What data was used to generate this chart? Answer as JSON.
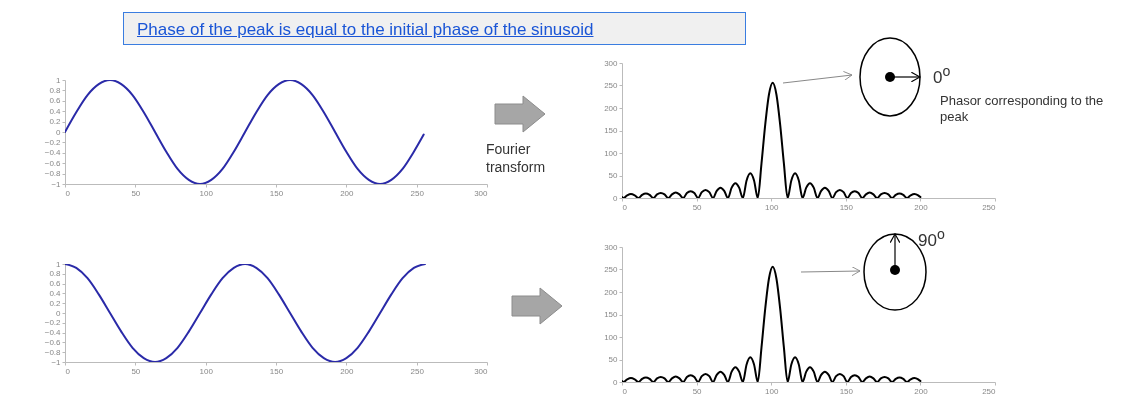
{
  "chart_data": [
    {
      "type": "line",
      "title": "Phase of the peak is equal to the initial phase of the sinusoid",
      "annotations": [
        "Fourier transform"
      ],
      "xlim": [
        0,
        300
      ],
      "xticks": [
        0,
        50,
        100,
        150,
        200,
        250,
        300
      ],
      "ylim": [
        -1,
        1
      ],
      "yticks": [
        -1,
        -0.8,
        -0.6,
        -0.4,
        -0.2,
        0,
        0.2,
        0.4,
        0.6,
        0.8,
        1
      ],
      "grid": false,
      "series": [
        {
          "color": "#2a2aa8",
          "x": [
            0,
            8,
            16,
            24,
            32,
            40,
            48,
            56,
            64,
            72,
            80,
            88,
            96,
            104,
            112,
            120,
            128,
            136,
            144,
            152,
            160,
            168,
            176,
            184,
            192,
            200,
            208,
            216,
            224,
            232,
            240,
            248,
            255
          ],
          "values": [
            0,
            0.38,
            0.71,
            0.92,
            1,
            0.92,
            0.71,
            0.38,
            0,
            -0.38,
            -0.71,
            -0.92,
            -1,
            -0.92,
            -0.71,
            -0.38,
            0,
            0.38,
            0.71,
            0.92,
            1,
            0.92,
            0.71,
            0.38,
            0,
            -0.38,
            -0.71,
            -0.92,
            -1,
            -0.92,
            -0.71,
            -0.38,
            -0.05
          ]
        }
      ]
    },
    {
      "type": "line",
      "annotations": [
        "0$^{o}$",
        "Phasor corresponding to the peak"
      ],
      "xlim": [
        0,
        250
      ],
      "xticks": [
        0,
        50,
        100,
        150,
        200,
        250
      ],
      "ylim": [
        0,
        300
      ],
      "yticks": [
        0,
        50,
        100,
        150,
        200,
        250,
        300
      ],
      "grid": false,
      "series": [
        {
          "color": "#000000",
          "x": [
            0,
            1,
            3.5,
            6,
            8.5,
            11,
            13.5,
            16,
            18.5,
            21,
            23.5,
            26,
            28.5,
            31,
            33.5,
            36,
            38.5,
            41,
            43.5,
            46,
            48.5,
            51,
            53.5,
            56,
            58.5,
            61,
            63.5,
            66,
            68.5,
            71,
            73.5,
            76,
            78.5,
            81,
            83.5,
            86,
            88.5,
            91,
            93.5,
            96,
            98.5,
            101,
            103.5,
            106,
            108.5,
            111,
            113.5,
            116,
            118.5,
            121,
            123.5,
            126,
            128.5,
            131,
            133.5,
            136,
            138.5,
            141,
            143.5,
            146,
            148.5,
            151,
            153.5,
            156,
            158.5,
            161,
            163.5,
            166,
            168.5,
            171,
            173.5,
            176,
            178.5,
            181,
            183.5,
            186,
            188.5,
            191,
            193.5,
            196,
            198.5,
            200
          ],
          "values": [
            2,
            0,
            6,
            9,
            6,
            0,
            7,
            10,
            7,
            0,
            8,
            11,
            8,
            0,
            8,
            12,
            8,
            0,
            11,
            15,
            11,
            0,
            13,
            18,
            13,
            0,
            16,
            23,
            16,
            0,
            23,
            33,
            23,
            0,
            39,
            55,
            39,
            0,
            77,
            163,
            230,
            256,
            230,
            163,
            77,
            0,
            39,
            55,
            39,
            0,
            23,
            33,
            23,
            0,
            16,
            23,
            16,
            0,
            13,
            18,
            13,
            0,
            11,
            15,
            11,
            0,
            8,
            12,
            8,
            0,
            8,
            11,
            8,
            0,
            7,
            10,
            7,
            0,
            6,
            9,
            6,
            2
          ]
        }
      ]
    },
    {
      "type": "line",
      "xlim": [
        0,
        300
      ],
      "xticks": [
        0,
        50,
        100,
        150,
        200,
        250,
        300
      ],
      "ylim": [
        -1,
        1
      ],
      "yticks": [
        -1,
        -0.8,
        -0.6,
        -0.4,
        -0.2,
        0,
        0.2,
        0.4,
        0.6,
        0.8,
        1
      ],
      "grid": false,
      "series": [
        {
          "color": "#2a2aa8",
          "x": [
            0,
            8,
            16,
            24,
            32,
            40,
            48,
            56,
            64,
            72,
            80,
            88,
            96,
            104,
            112,
            120,
            128,
            136,
            144,
            152,
            160,
            168,
            176,
            184,
            192,
            200,
            208,
            216,
            224,
            232,
            240,
            248,
            256
          ],
          "values": [
            1,
            0.92,
            0.71,
            0.38,
            0,
            -0.38,
            -0.71,
            -0.92,
            -1,
            -0.92,
            -0.71,
            -0.38,
            0,
            0.38,
            0.71,
            0.92,
            1,
            0.92,
            0.71,
            0.38,
            0,
            -0.38,
            -0.71,
            -0.92,
            -1,
            -0.92,
            -0.71,
            -0.38,
            0,
            0.38,
            0.71,
            0.92,
            1
          ]
        }
      ]
    },
    {
      "type": "line",
      "annotations": [
        "90$^{o}$"
      ],
      "xlim": [
        0,
        250
      ],
      "xticks": [
        0,
        50,
        100,
        150,
        200,
        250
      ],
      "ylim": [
        0,
        300
      ],
      "yticks": [
        0,
        50,
        100,
        150,
        200,
        250,
        300
      ],
      "grid": false,
      "series": [
        {
          "color": "#000000",
          "x": [
            0,
            1,
            3.5,
            6,
            8.5,
            11,
            13.5,
            16,
            18.5,
            21,
            23.5,
            26,
            28.5,
            31,
            33.5,
            36,
            38.5,
            41,
            43.5,
            46,
            48.5,
            51,
            53.5,
            56,
            58.5,
            61,
            63.5,
            66,
            68.5,
            71,
            73.5,
            76,
            78.5,
            81,
            83.5,
            86,
            88.5,
            91,
            93.5,
            96,
            98.5,
            101,
            103.5,
            106,
            108.5,
            111,
            113.5,
            116,
            118.5,
            121,
            123.5,
            126,
            128.5,
            131,
            133.5,
            136,
            138.5,
            141,
            143.5,
            146,
            148.5,
            151,
            153.5,
            156,
            158.5,
            161,
            163.5,
            166,
            168.5,
            171,
            173.5,
            176,
            178.5,
            181,
            183.5,
            186,
            188.5,
            191,
            193.5,
            196,
            198.5,
            200
          ],
          "values": [
            2,
            0,
            6,
            9,
            6,
            0,
            7,
            10,
            7,
            0,
            8,
            11,
            8,
            0,
            8,
            12,
            8,
            0,
            11,
            15,
            11,
            0,
            13,
            18,
            13,
            0,
            16,
            23,
            16,
            0,
            23,
            33,
            23,
            0,
            39,
            55,
            39,
            0,
            77,
            163,
            230,
            256,
            230,
            163,
            77,
            0,
            39,
            55,
            39,
            0,
            23,
            33,
            23,
            0,
            16,
            23,
            16,
            0,
            13,
            18,
            13,
            0,
            11,
            15,
            11,
            0,
            8,
            12,
            8,
            0,
            8,
            11,
            8,
            0,
            7,
            10,
            7,
            0,
            6,
            9,
            6,
            2
          ]
        }
      ]
    }
  ]
}
